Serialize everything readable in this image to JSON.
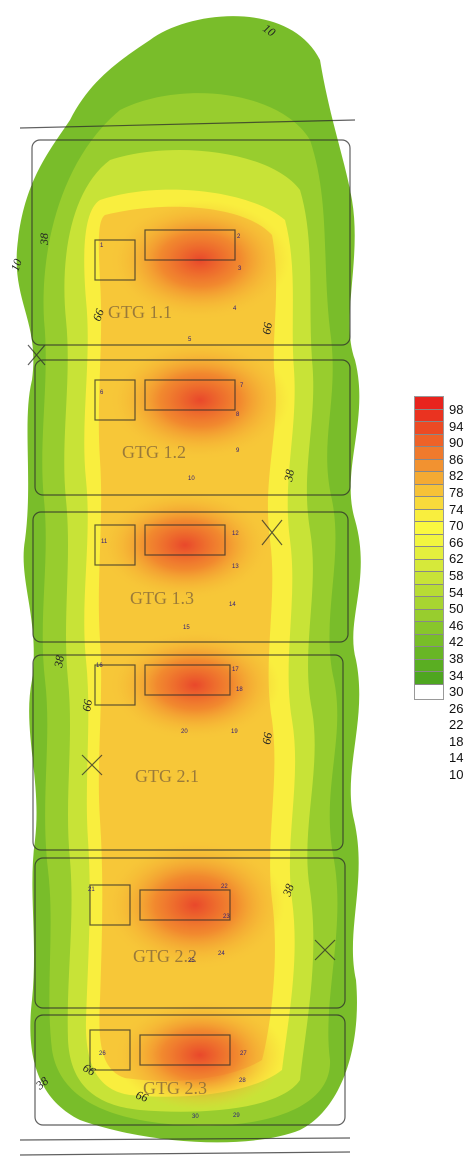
{
  "map": {
    "gtg_labels": [
      "GTG 1.1",
      "GTG 1.2",
      "GTG 1.3",
      "GTG 2.1",
      "GTG 2.2",
      "GTG 2.3"
    ],
    "contour_labels": [
      "10",
      "38",
      "10",
      "66",
      "66",
      "38",
      "38",
      "66",
      "66",
      "38",
      "38",
      "66",
      "66"
    ],
    "points": [
      "1",
      "2",
      "3",
      "4",
      "5",
      "6",
      "7",
      "8",
      "9",
      "10",
      "11",
      "12",
      "13",
      "14",
      "15",
      "16",
      "17",
      "18",
      "19",
      "20",
      "21",
      "22",
      "23",
      "24",
      "25",
      "26",
      "27",
      "28",
      "29",
      "30"
    ]
  },
  "legend": {
    "labels": [
      "98",
      "94",
      "90",
      "86",
      "82",
      "78",
      "74",
      "70",
      "66",
      "62",
      "58",
      "54",
      "50",
      "46",
      "42",
      "38",
      "34",
      "30",
      "26",
      "22",
      "18",
      "14",
      "10"
    ],
    "colors": [
      "#e8231d",
      "#ea3320",
      "#ec4a24",
      "#ee6228",
      "#f07a2c",
      "#f29230",
      "#f4aa33",
      "#f6c237",
      "#f8da3b",
      "#f9ee3e",
      "#faf840",
      "#f2f540",
      "#e4ef3d",
      "#d6e93a",
      "#c8e337",
      "#b8dc34",
      "#a8d531",
      "#98cd2e",
      "#88c62b",
      "#78be28",
      "#68b625",
      "#5aae22",
      "#4ea620"
    ]
  }
}
